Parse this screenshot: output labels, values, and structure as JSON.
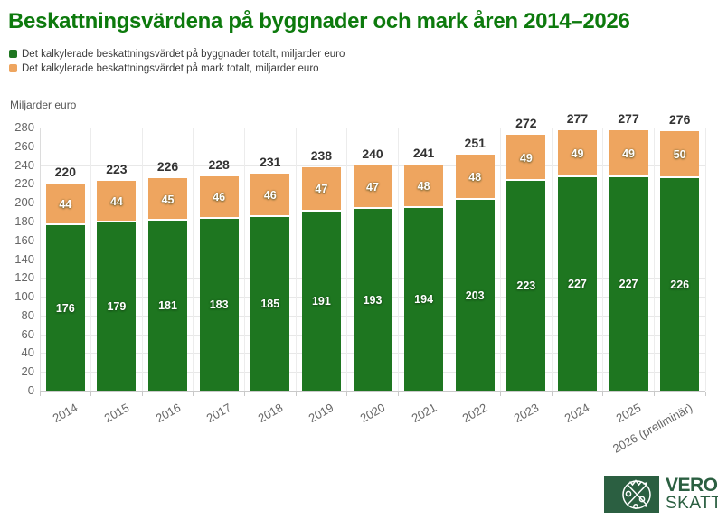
{
  "title": "Beskattningsvärdena på byggnader och mark åren 2014–2026",
  "legend": {
    "items": [
      {
        "label": "Det kalkylerade beskattningsvärdet på byggnader totalt, miljarder euro",
        "color": "#1e7620"
      },
      {
        "label": "Det kalkylerade beskattningsvärdet på mark totalt, miljarder euro",
        "color": "#eea55f"
      }
    ]
  },
  "chart_data": {
    "type": "bar",
    "stacked": true,
    "title": "Beskattningsvärdena på byggnader och mark åren 2014–2026",
    "ylabel": "Miljarder euro",
    "xlabel": "",
    "ylim": [
      0,
      280
    ],
    "ytick_step": 20,
    "grid": true,
    "legend_position": "top-left",
    "categories": [
      "2014",
      "2015",
      "2016",
      "2017",
      "2018",
      "2019",
      "2020",
      "2021",
      "2022",
      "2023",
      "2024",
      "2025",
      "2026 (preliminär)"
    ],
    "series": [
      {
        "name": "Det kalkylerade beskattningsvärdet på byggnader totalt, miljarder euro",
        "color": "#1e7620",
        "values": [
          176,
          179,
          181,
          183,
          185,
          191,
          193,
          194,
          203,
          223,
          227,
          227,
          226
        ]
      },
      {
        "name": "Det kalkylerade beskattningsvärdet på mark totalt, miljarder euro",
        "color": "#eea55f",
        "values": [
          44,
          44,
          45,
          46,
          46,
          47,
          47,
          48,
          48,
          49,
          49,
          49,
          50
        ]
      }
    ],
    "totals": [
      220,
      223,
      226,
      228,
      231,
      238,
      240,
      241,
      251,
      272,
      277,
      277,
      276
    ]
  },
  "logo": {
    "line1": "VERO",
    "line2": "SKATT",
    "color": "#2b5f41"
  }
}
